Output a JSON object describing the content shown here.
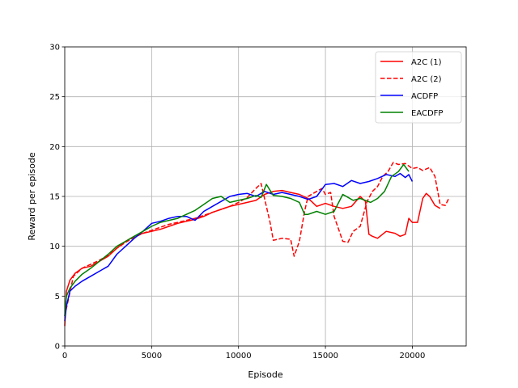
{
  "chart_data": {
    "type": "line",
    "title": "",
    "xlabel": "Episode",
    "ylabel": "Reward per episode",
    "xlim": [
      0,
      23100
    ],
    "ylim": [
      0,
      30
    ],
    "x_ticks": [
      0,
      5000,
      10000,
      15000,
      20000
    ],
    "y_ticks": [
      0,
      5,
      10,
      15,
      20,
      25,
      30
    ],
    "grid": true,
    "legend_position": "top-right",
    "series": [
      {
        "name": "A2C (1)",
        "color": "#ff0000",
        "dash": "solid",
        "x": [
          0,
          100,
          300,
          600,
          1000,
          1500,
          2000,
          2500,
          3000,
          3500,
          4000,
          4500,
          5000,
          5500,
          6000,
          6500,
          7000,
          7500,
          8000,
          8500,
          9000,
          9500,
          10000,
          10500,
          11000,
          11500,
          12000,
          12500,
          13000,
          13500,
          14000,
          14200,
          14500,
          15000,
          15500,
          16000,
          16500,
          17000,
          17300,
          17500,
          17700,
          18000,
          18500,
          19000,
          19300,
          19600,
          19800,
          20000,
          20300,
          20600,
          20800,
          21000,
          21300,
          21600
        ],
        "y": [
          2.0,
          5.5,
          6.6,
          7.3,
          7.8,
          8.0,
          8.5,
          9.0,
          9.8,
          10.5,
          11.0,
          11.3,
          11.5,
          11.7,
          12.0,
          12.3,
          12.5,
          12.7,
          13.0,
          13.4,
          13.7,
          14.0,
          14.2,
          14.4,
          14.6,
          15.2,
          15.5,
          15.6,
          15.4,
          15.2,
          14.8,
          14.5,
          14.0,
          14.3,
          14.0,
          13.8,
          14.0,
          15.0,
          14.5,
          11.2,
          11.0,
          10.8,
          11.5,
          11.3,
          11.0,
          11.2,
          12.8,
          12.4,
          12.4,
          14.8,
          15.3,
          15.0,
          14.1,
          13.8
        ]
      },
      {
        "name": "A2C (2)",
        "color": "#ff0000",
        "dash": "dashed",
        "x": [
          0,
          500,
          1000,
          1500,
          2000,
          2500,
          3000,
          3500,
          4000,
          4500,
          5000,
          5500,
          6000,
          6500,
          7000,
          7500,
          8000,
          8500,
          9000,
          9500,
          10000,
          10500,
          11000,
          11300,
          11600,
          11800,
          12000,
          12500,
          13000,
          13200,
          13500,
          13800,
          14000,
          14500,
          14800,
          15000,
          15300,
          15500,
          15800,
          16000,
          16300,
          16600,
          17000,
          17400,
          17700,
          18000,
          18300,
          18600,
          18900,
          19200,
          19600,
          20000,
          20300,
          20600,
          21000,
          21300,
          21600,
          21900,
          22100
        ],
        "y": [
          3.0,
          7.0,
          7.8,
          8.2,
          8.6,
          9.1,
          9.8,
          10.4,
          10.9,
          11.3,
          11.6,
          11.9,
          12.2,
          12.4,
          12.6,
          12.8,
          13.1,
          13.4,
          13.7,
          14.0,
          14.4,
          14.9,
          15.8,
          16.3,
          14.0,
          12.5,
          10.6,
          10.8,
          10.7,
          9.0,
          10.5,
          13.5,
          15.0,
          15.5,
          15.8,
          15.2,
          15.4,
          13.0,
          11.5,
          10.5,
          10.4,
          11.5,
          12.0,
          14.5,
          15.5,
          16.0,
          17.0,
          17.5,
          18.4,
          18.2,
          18.3,
          17.8,
          17.9,
          17.6,
          17.9,
          17.0,
          14.2,
          14.1,
          14.8
        ]
      },
      {
        "name": "ACDFP",
        "color": "#0000ff",
        "dash": "solid",
        "x": [
          0,
          100,
          300,
          600,
          1000,
          1500,
          2000,
          2500,
          3000,
          3500,
          4000,
          4500,
          5000,
          5500,
          6000,
          6500,
          7000,
          7500,
          8000,
          8500,
          9000,
          9500,
          10000,
          10500,
          11000,
          11500,
          12000,
          12500,
          13000,
          13500,
          14000,
          14500,
          15000,
          15500,
          16000,
          16500,
          17000,
          17500,
          18000,
          18500,
          19000,
          19300,
          19600,
          19800,
          20000
        ],
        "y": [
          2.5,
          4.0,
          5.5,
          6.0,
          6.5,
          7.0,
          7.5,
          8.0,
          9.2,
          10.0,
          10.8,
          11.5,
          12.3,
          12.5,
          12.8,
          13.0,
          13.0,
          12.6,
          13.5,
          14.0,
          14.5,
          15.0,
          15.2,
          15.3,
          15.0,
          15.5,
          15.2,
          15.4,
          15.2,
          15.0,
          14.7,
          15.0,
          16.2,
          16.3,
          16.0,
          16.6,
          16.3,
          16.5,
          16.8,
          17.2,
          17.0,
          17.3,
          16.9,
          17.2,
          16.5
        ]
      },
      {
        "name": "EACDFP",
        "color": "#008000",
        "dash": "solid",
        "x": [
          0,
          100,
          300,
          600,
          1000,
          1500,
          2000,
          2500,
          3000,
          3500,
          4000,
          4500,
          5000,
          5500,
          6000,
          6500,
          7000,
          7500,
          8000,
          8500,
          9000,
          9500,
          10000,
          10500,
          11000,
          11300,
          11600,
          12000,
          12500,
          13000,
          13500,
          13800,
          14000,
          14500,
          15000,
          15500,
          16000,
          16300,
          16600,
          17000,
          17300,
          17600,
          18000,
          18400,
          18800,
          19200,
          19500,
          19800
        ],
        "y": [
          3.0,
          5.0,
          5.8,
          6.5,
          7.2,
          7.8,
          8.5,
          9.2,
          10.0,
          10.5,
          11.0,
          11.5,
          12.0,
          12.4,
          12.6,
          12.8,
          13.2,
          13.6,
          14.2,
          14.8,
          15.0,
          14.4,
          14.6,
          14.8,
          15.1,
          14.9,
          16.2,
          15.1,
          15.0,
          14.8,
          14.4,
          13.2,
          13.2,
          13.5,
          13.2,
          13.5,
          15.2,
          14.9,
          14.6,
          14.8,
          14.6,
          14.4,
          14.8,
          15.5,
          17.0,
          17.5,
          18.2,
          17.5
        ]
      }
    ]
  }
}
